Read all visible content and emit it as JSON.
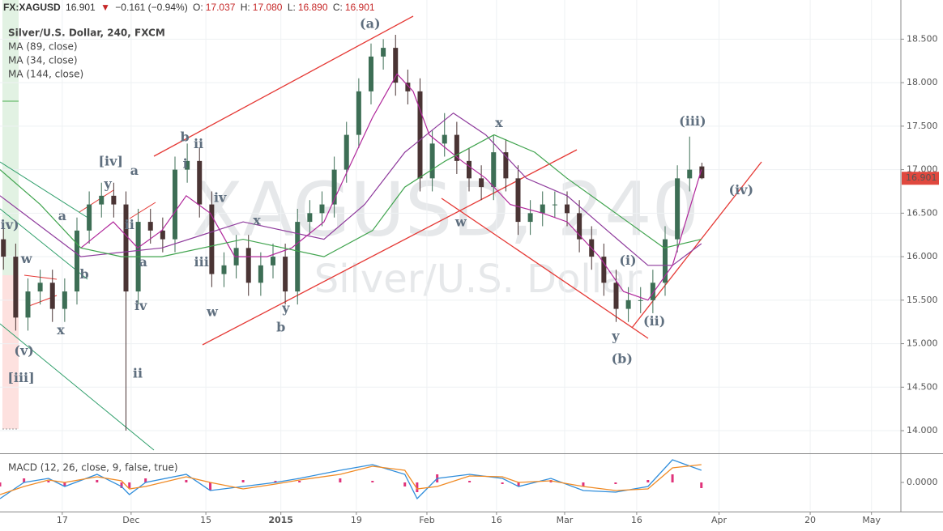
{
  "header": {
    "symbol": "FX:XAGUSD",
    "last": "16.901",
    "arrow": "▼",
    "change": "−0.161 (−0.94%)",
    "o_label": "O:",
    "open": "17.037",
    "h_label": "H:",
    "high": "17.080",
    "l_label": "L:",
    "low": "16.890",
    "c_label": "C:",
    "close": "16.901"
  },
  "chart_data": [
    {
      "type": "candlestick",
      "title": "Silver/U.S. Dollar, 240, FXCM",
      "watermark": [
        "XAGUSD, 240",
        "Silver/U.S. Dollar"
      ],
      "up_color": "#3d6e55",
      "down_color": "#4a3434",
      "grid": true,
      "xlim": [
        -12.7,
        171.1
      ],
      "ylim": [
        13.74,
        18.95
      ],
      "xticks": [
        {
          "value": 0,
          "label": "17"
        },
        {
          "value": 14.05,
          "label": "Dec"
        },
        {
          "value": 29.3,
          "label": "15"
        },
        {
          "value": 44.6,
          "label": "2015"
        },
        {
          "value": 60,
          "label": "19"
        },
        {
          "value": 74.4,
          "label": "Feb"
        },
        {
          "value": 88.6,
          "label": "16"
        },
        {
          "value": 102.5,
          "label": "Mar"
        },
        {
          "value": 117.2,
          "label": "16"
        },
        {
          "value": 134,
          "label": "Apr"
        },
        {
          "value": 152.6,
          "label": "20"
        },
        {
          "value": 165.1,
          "label": "May"
        }
      ],
      "yticks": [
        {
          "value": 14,
          "label": "14.000"
        },
        {
          "value": 14.5,
          "label": "14.500"
        },
        {
          "value": 15,
          "label": "15.000"
        },
        {
          "value": 15.5,
          "label": "15.500"
        },
        {
          "value": 16,
          "label": "16.000"
        },
        {
          "value": 16.5,
          "label": "16.500"
        },
        {
          "value": 17,
          "label": "17.000"
        },
        {
          "value": 17.5,
          "label": "17.500"
        },
        {
          "value": 18,
          "label": "18.000"
        },
        {
          "value": 18.5,
          "label": "18.500"
        }
      ],
      "last_price": 16.901,
      "last_price_color": "#e0483e",
      "x": [
        -12,
        -9.5,
        -7,
        -4.5,
        -2,
        0.5,
        3,
        5.5,
        8,
        10.5,
        13,
        15.5,
        18,
        20.5,
        23,
        25.5,
        28,
        30.5,
        33,
        35.5,
        38,
        40.5,
        43,
        45.5,
        48,
        50.5,
        53,
        55.5,
        58,
        60.5,
        63,
        65.5,
        68,
        70.5,
        73,
        75.5,
        78,
        80.5,
        83,
        85.5,
        88,
        90.5,
        93,
        95.5,
        98,
        100.5,
        103,
        105.5,
        108,
        110.5,
        113,
        115.5,
        118,
        120.5,
        123,
        125.5,
        128,
        130.5
      ],
      "open": [
        16.2,
        16.0,
        15.3,
        15.6,
        15.7,
        15.4,
        15.6,
        16.3,
        16.6,
        16.7,
        16.6,
        15.6,
        16.4,
        16.3,
        16.2,
        17.0,
        17.1,
        16.6,
        15.8,
        15.9,
        16.1,
        15.7,
        15.9,
        16.0,
        15.6,
        16.4,
        16.5,
        16.6,
        17.0,
        17.4,
        17.9,
        18.3,
        18.4,
        18.0,
        17.9,
        16.9,
        17.3,
        17.4,
        17.1,
        16.9,
        16.8,
        17.2,
        16.9,
        16.4,
        16.5,
        16.6,
        16.6,
        16.5,
        16.2,
        16.0,
        15.7,
        15.4,
        15.5,
        15.5,
        15.7,
        16.2,
        16.9,
        17.037
      ],
      "high": [
        16.35,
        16.15,
        15.75,
        15.85,
        15.85,
        15.75,
        16.45,
        16.75,
        16.85,
        16.85,
        16.75,
        16.55,
        16.55,
        16.45,
        17.15,
        17.3,
        17.25,
        16.75,
        16.05,
        16.25,
        16.25,
        16.05,
        16.15,
        16.15,
        16.55,
        16.65,
        16.75,
        17.15,
        17.55,
        18.05,
        18.45,
        18.5,
        18.55,
        18.15,
        18.05,
        17.45,
        17.65,
        17.55,
        17.25,
        17.05,
        17.4,
        17.35,
        17.05,
        16.65,
        16.75,
        16.75,
        16.75,
        16.65,
        16.35,
        16.15,
        15.85,
        15.65,
        15.65,
        15.85,
        16.35,
        17.05,
        17.38,
        17.08
      ],
      "low": [
        15.85,
        15.15,
        15.15,
        15.45,
        15.25,
        15.25,
        15.45,
        16.15,
        16.45,
        16.45,
        14.0,
        15.45,
        16.15,
        16.05,
        16.05,
        16.85,
        16.45,
        15.65,
        15.65,
        15.75,
        15.55,
        15.55,
        15.75,
        15.45,
        15.45,
        16.25,
        16.35,
        16.45,
        16.85,
        17.25,
        17.75,
        18.15,
        17.85,
        17.75,
        16.75,
        16.75,
        17.15,
        16.95,
        16.75,
        16.65,
        16.65,
        16.75,
        16.25,
        16.25,
        16.35,
        16.45,
        16.35,
        16.05,
        15.85,
        15.55,
        15.25,
        15.25,
        15.35,
        15.35,
        15.55,
        16.05,
        16.75,
        16.89
      ],
      "close": [
        16.0,
        15.3,
        15.6,
        15.7,
        15.4,
        15.6,
        16.3,
        16.6,
        16.7,
        16.6,
        15.6,
        16.4,
        16.3,
        16.2,
        17.0,
        17.1,
        16.6,
        15.8,
        15.9,
        16.1,
        15.7,
        15.9,
        16.0,
        15.6,
        16.4,
        16.5,
        16.6,
        17.0,
        17.4,
        17.9,
        18.3,
        18.4,
        18.0,
        17.9,
        16.9,
        17.3,
        17.4,
        17.1,
        16.9,
        16.8,
        17.2,
        16.9,
        16.4,
        16.5,
        16.6,
        16.6,
        16.5,
        16.2,
        16.0,
        15.7,
        15.4,
        15.5,
        15.5,
        15.7,
        16.2,
        16.9,
        17.0,
        16.901
      ],
      "series": [
        {
          "name": "MA (89, close)",
          "color": "#8e3a9c",
          "x": [
            -12.7,
            3.8,
            20.3,
            36.9,
            53.4,
            61.7,
            69.9,
            79.8,
            86.4,
            94.7,
            103,
            111.2,
            119.5,
            124.5,
            130.4
          ],
          "values": [
            16.7,
            16.0,
            16.1,
            16.4,
            16.2,
            16.6,
            17.2,
            17.65,
            17.4,
            16.9,
            16.7,
            16.3,
            15.9,
            15.9,
            16.15
          ]
        },
        {
          "name": "MA (34, close)",
          "color": "#b0279b",
          "x": [
            3.8,
            10.4,
            15.4,
            20.3,
            25.3,
            30.2,
            35.2,
            41.8,
            46.8,
            53.4,
            58.3,
            63.3,
            68.3,
            71.6,
            74.9,
            81.5,
            86.4,
            91.4,
            98,
            103,
            109.6,
            114.5,
            119.5,
            124.5,
            130.4
          ],
          "values": [
            16.1,
            16.4,
            16.1,
            16.3,
            16.7,
            16.5,
            16.0,
            16.0,
            16.1,
            16.4,
            17.0,
            17.6,
            18.1,
            17.9,
            17.4,
            17.1,
            16.9,
            16.6,
            16.5,
            16.4,
            16.0,
            15.6,
            15.5,
            15.9,
            17.0
          ]
        },
        {
          "name": "MA (144, close)",
          "color": "#3fa34d",
          "x": [
            -12.7,
            -4.5,
            3.8,
            12.1,
            20.3,
            36.9,
            53.4,
            63.3,
            69.9,
            78.2,
            88.1,
            96.4,
            103,
            112.9,
            122.8,
            130.4
          ],
          "values": [
            17.0,
            16.6,
            16.1,
            16.0,
            16.0,
            16.2,
            16.0,
            16.3,
            16.8,
            17.1,
            17.4,
            17.2,
            16.9,
            16.5,
            16.1,
            16.2
          ]
        }
      ],
      "annotations": [
        {
          "text": "(a)",
          "x": 62.8,
          "y": 18.67
        },
        {
          "text": "(iii)",
          "x": 128.6,
          "y": 17.55
        },
        {
          "text": "(iv)",
          "x": 138.5,
          "y": 16.76
        },
        {
          "text": "(i)",
          "x": 115.4,
          "y": 15.95
        },
        {
          "text": "(ii)",
          "x": 120.8,
          "y": 15.25
        },
        {
          "text": "y",
          "x": 112.9,
          "y": 15.08
        },
        {
          "text": "(b)",
          "x": 114.2,
          "y": 14.82
        },
        {
          "text": "x",
          "x": 89.1,
          "y": 17.53
        },
        {
          "text": "w",
          "x": 81.3,
          "y": 16.39
        },
        {
          "text": "x",
          "x": 39.7,
          "y": 16.41
        },
        {
          "text": "w",
          "x": 30.6,
          "y": 15.36
        },
        {
          "text": "y",
          "x": 45.6,
          "y": 15.4
        },
        {
          "text": "b",
          "x": 44.6,
          "y": 15.18
        },
        {
          "text": "[iv]",
          "x": 9.9,
          "y": 17.09
        },
        {
          "text": "a",
          "x": 14.7,
          "y": 16.98
        },
        {
          "text": "y",
          "x": 9.3,
          "y": 16.83
        },
        {
          "text": "b",
          "x": 25.0,
          "y": 17.37
        },
        {
          "text": "ii",
          "x": 27.8,
          "y": 17.29
        },
        {
          "text": "i",
          "x": 25.1,
          "y": 17.06
        },
        {
          "text": "iv",
          "x": 32.2,
          "y": 16.67
        },
        {
          "text": "iii",
          "x": 28.4,
          "y": 15.93
        },
        {
          "text": "a",
          "x": 16.5,
          "y": 15.93
        },
        {
          "text": "iv",
          "x": 16.0,
          "y": 15.43
        },
        {
          "text": "ii",
          "x": 15.4,
          "y": 14.65
        },
        {
          "text": "ii",
          "x": 13.7,
          "y": 16.36
        },
        {
          "text": "iv)",
          "x": -10.7,
          "y": 16.36
        },
        {
          "text": "w",
          "x": -7.3,
          "y": 15.97
        },
        {
          "text": "x",
          "x": -0.3,
          "y": 15.15
        },
        {
          "text": "(v)",
          "x": -7.8,
          "y": 14.91
        },
        {
          "text": "[iii]",
          "x": -8.4,
          "y": 14.6
        },
        {
          "text": "a",
          "x": 0,
          "y": 16.46
        },
        {
          "text": "b",
          "x": 4.5,
          "y": 15.79
        }
      ]
    },
    {
      "type": "line",
      "title": "MACD (12, 26, close, 9, false, true)",
      "ylim": [
        -0.34,
        0.34
      ],
      "yticks": [
        {
          "value": 0,
          "label": "0.0000"
        }
      ],
      "x": [
        -12.7,
        -7.8,
        -2.8,
        0.5,
        7.1,
        12.1,
        13.7,
        17,
        25.3,
        30.2,
        36.9,
        43.5,
        48.4,
        56.7,
        63.3,
        69.9,
        72.4,
        76.5,
        83.1,
        89.8,
        93.1,
        99.7,
        106.3,
        112.9,
        119.5,
        124.5,
        130.4
      ],
      "histogram": {
        "color": "#e0337a",
        "values": [
          -0.05,
          0.05,
          0.02,
          -0.05,
          0.03,
          -0.07,
          -0.07,
          0.05,
          0.03,
          -0.1,
          0.03,
          0.02,
          0.02,
          0.05,
          0.02,
          -0.05,
          -0.12,
          0.1,
          0.02,
          -0.02,
          -0.05,
          0.03,
          -0.05,
          -0.02,
          0.03,
          0.1,
          -0.07
        ]
      },
      "series": [
        {
          "name": "MACD",
          "color": "#2f8ddb",
          "values": [
            -0.2,
            0,
            0.05,
            -0.05,
            0.1,
            -0.05,
            -0.15,
            0,
            0.1,
            -0.1,
            -0.05,
            0,
            0.05,
            0.15,
            0.22,
            0.1,
            -0.2,
            0.05,
            0.1,
            0.05,
            -0.05,
            0.05,
            -0.1,
            -0.12,
            -0.05,
            0.28,
            0.15
          ]
        },
        {
          "name": "Signal",
          "color": "#f08a24",
          "values": [
            -0.15,
            -0.05,
            0.03,
            0,
            0.07,
            0.02,
            -0.08,
            -0.05,
            0.07,
            0,
            -0.08,
            -0.02,
            0.03,
            0.1,
            0.2,
            0.15,
            -0.08,
            -0.05,
            0.08,
            0.07,
            0,
            0.02,
            -0.05,
            -0.1,
            -0.08,
            0.18,
            0.22
          ]
        }
      ]
    }
  ]
}
